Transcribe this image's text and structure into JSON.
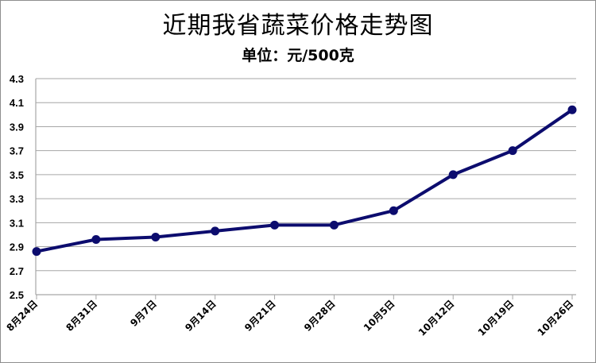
{
  "chart_data": {
    "type": "line",
    "title": "近期我省蔬菜价格走势图",
    "subtitle": "单位：元/500克",
    "xlabel": "",
    "ylabel": "",
    "categories": [
      "8月24日",
      "8月31日",
      "9月7日",
      "9月14日",
      "9月21日",
      "9月28日",
      "10月5日",
      "10月12日",
      "10月19日",
      "10月26日"
    ],
    "series": [
      {
        "values": [
          2.86,
          2.96,
          2.98,
          3.03,
          3.08,
          3.08,
          3.2,
          3.5,
          3.7,
          4.04
        ]
      }
    ],
    "ylim": [
      2.5,
      4.3
    ],
    "yticks": [
      "2.5",
      "2.7",
      "2.9",
      "3.1",
      "3.3",
      "3.5",
      "3.7",
      "3.9",
      "4.1",
      "4.3"
    ],
    "grid": true,
    "legend": "none",
    "line_color": "#0c0c6e",
    "grid_color": "#a6a6a6"
  }
}
